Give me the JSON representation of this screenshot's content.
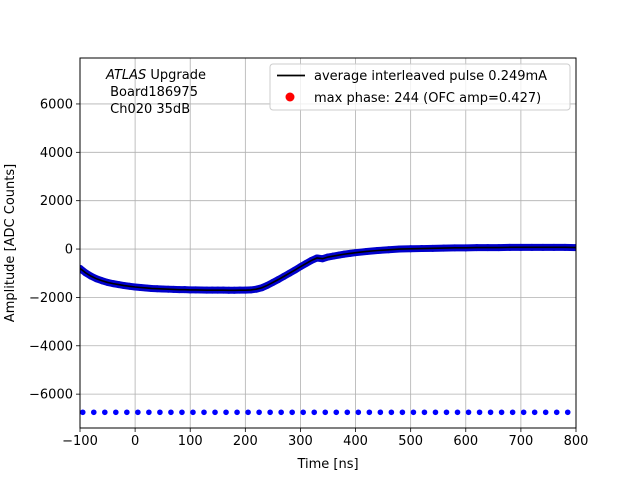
{
  "chart_data": {
    "type": "scatter",
    "title": "",
    "xlabel": "Time [ns]",
    "ylabel": "Amplitude [ADC Counts]",
    "xlim": [
      -100,
      800
    ],
    "ylim": [
      -7400,
      7900
    ],
    "grid": true,
    "legend_placement": "top-right",
    "x_ticks": [
      -100,
      0,
      100,
      200,
      300,
      400,
      500,
      600,
      700,
      800
    ],
    "x_tick_labels": [
      "−100",
      "0",
      "100",
      "200",
      "300",
      "400",
      "500",
      "600",
      "700",
      "800"
    ],
    "y_ticks": [
      -6000,
      -4000,
      -2000,
      0,
      2000,
      4000,
      6000
    ],
    "y_tick_labels": [
      "−6000",
      "−4000",
      "−2000",
      "0",
      "2000",
      "4000",
      "6000"
    ],
    "annotation": {
      "line1_italic": "ATLAS",
      "line1_rest": " Upgrade",
      "line2": " Board186975",
      "line3": " Ch020 35dB"
    },
    "legend": [
      {
        "label": "average interleaved pulse 0.249mA",
        "marker": "line",
        "color": "#000000"
      },
      {
        "label": "max phase: 244 (OFC amp=0.427)",
        "marker": "dot",
        "color": "#ff0000"
      }
    ],
    "series": [
      {
        "color": "#0000cc",
        "marker": "dense-dots",
        "x": [
          -100,
          -90,
          -80,
          -70,
          -60,
          -50,
          -40,
          -30,
          -20,
          -10,
          0,
          10,
          20,
          30,
          40,
          50,
          60,
          70,
          80,
          90,
          100,
          110,
          120,
          130,
          140,
          150,
          160,
          170,
          180,
          190,
          200,
          210,
          220,
          230,
          240,
          250,
          260,
          270,
          280,
          290,
          300,
          310,
          320,
          330,
          340,
          350,
          360,
          370,
          380,
          390,
          400,
          420,
          440,
          460,
          480,
          500,
          520,
          540,
          560,
          580,
          600,
          620,
          640,
          660,
          680,
          700,
          720,
          740,
          760,
          780,
          800
        ],
        "y": [
          -800,
          -980,
          -1120,
          -1230,
          -1310,
          -1380,
          -1430,
          -1470,
          -1510,
          -1540,
          -1570,
          -1590,
          -1610,
          -1630,
          -1640,
          -1650,
          -1660,
          -1670,
          -1680,
          -1680,
          -1690,
          -1690,
          -1695,
          -1700,
          -1700,
          -1700,
          -1700,
          -1705,
          -1705,
          -1700,
          -1700,
          -1690,
          -1660,
          -1600,
          -1500,
          -1380,
          -1260,
          -1130,
          -1000,
          -870,
          -730,
          -600,
          -470,
          -370,
          -400,
          -330,
          -290,
          -250,
          -210,
          -180,
          -150,
          -100,
          -60,
          -30,
          0,
          10,
          20,
          30,
          40,
          50,
          50,
          60,
          60,
          60,
          70,
          70,
          70,
          70,
          70,
          70,
          60
        ]
      },
      {
        "color": "#0000ff",
        "marker": "sparse-dots",
        "x": [
          -95,
          -75,
          -55,
          -35,
          -15,
          5,
          25,
          45,
          65,
          85,
          105,
          125,
          145,
          165,
          185,
          205,
          225,
          245,
          265,
          285,
          305,
          325,
          345,
          365,
          385,
          405,
          425,
          445,
          465,
          485,
          505,
          525,
          545,
          565,
          585,
          605,
          625,
          645,
          665,
          685,
          705,
          725,
          745,
          765,
          785
        ],
        "y": [
          -6750,
          -6750,
          -6750,
          -6750,
          -6750,
          -6750,
          -6750,
          -6750,
          -6750,
          -6750,
          -6750,
          -6750,
          -6750,
          -6750,
          -6750,
          -6750,
          -6750,
          -6750,
          -6750,
          -6750,
          -6750,
          -6750,
          -6750,
          -6750,
          -6750,
          -6750,
          -6750,
          -6750,
          -6750,
          -6750,
          -6750,
          -6750,
          -6750,
          -6750,
          -6750,
          -6750,
          -6750,
          -6750,
          -6750,
          -6750,
          -6750,
          -6750,
          -6750,
          -6750,
          -6750
        ]
      },
      {
        "color": "#000000",
        "marker": "line",
        "x": [
          -100,
          -90,
          -80,
          -70,
          -60,
          -50,
          -40,
          -30,
          -20,
          -10,
          0,
          10,
          20,
          30,
          40,
          50,
          60,
          70,
          80,
          90,
          100,
          110,
          120,
          130,
          140,
          150,
          160,
          170,
          180,
          190,
          200,
          210,
          220,
          230,
          240,
          250,
          260,
          270,
          280,
          290,
          300,
          310,
          320,
          330,
          340,
          350,
          360,
          370,
          380,
          390,
          400,
          420,
          440,
          460,
          480,
          500,
          520,
          540,
          560,
          580,
          600,
          620,
          640,
          660,
          680,
          700,
          720,
          740,
          760,
          780,
          800
        ],
        "y": [
          -800,
          -980,
          -1120,
          -1230,
          -1310,
          -1380,
          -1430,
          -1470,
          -1510,
          -1540,
          -1570,
          -1590,
          -1610,
          -1630,
          -1640,
          -1650,
          -1660,
          -1670,
          -1680,
          -1680,
          -1690,
          -1690,
          -1695,
          -1700,
          -1700,
          -1700,
          -1700,
          -1705,
          -1705,
          -1700,
          -1700,
          -1690,
          -1660,
          -1600,
          -1500,
          -1380,
          -1260,
          -1130,
          -1000,
          -870,
          -730,
          -600,
          -470,
          -370,
          -400,
          -330,
          -290,
          -250,
          -210,
          -180,
          -150,
          -100,
          -60,
          -30,
          0,
          10,
          20,
          30,
          40,
          50,
          50,
          60,
          60,
          60,
          70,
          70,
          70,
          70,
          70,
          70,
          60
        ]
      }
    ]
  }
}
